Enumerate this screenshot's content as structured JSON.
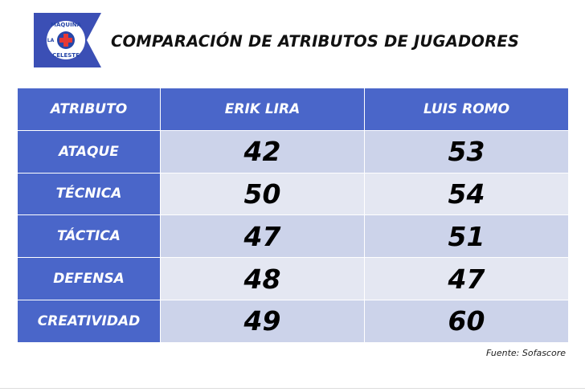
{
  "logo": {
    "top": "MÁQUINA",
    "side": "LA",
    "bottom": "CELESTE"
  },
  "header": {
    "title": "COMPARACIÓN DE ATRIBUTOS DE JUGADORES"
  },
  "table": {
    "columns": [
      "ATRIBUTO",
      "ERIK LIRA",
      "LUIS ROMO"
    ],
    "rows": [
      [
        "ATAQUE",
        42,
        53
      ],
      [
        "TÉCNICA",
        50,
        54
      ],
      [
        "TÁCTICA",
        47,
        51
      ],
      [
        "DEFENSA",
        48,
        47
      ],
      [
        "CREATIVIDAD",
        49,
        60
      ]
    ]
  },
  "footer": {
    "source": "Fuente: Sofascore"
  }
}
